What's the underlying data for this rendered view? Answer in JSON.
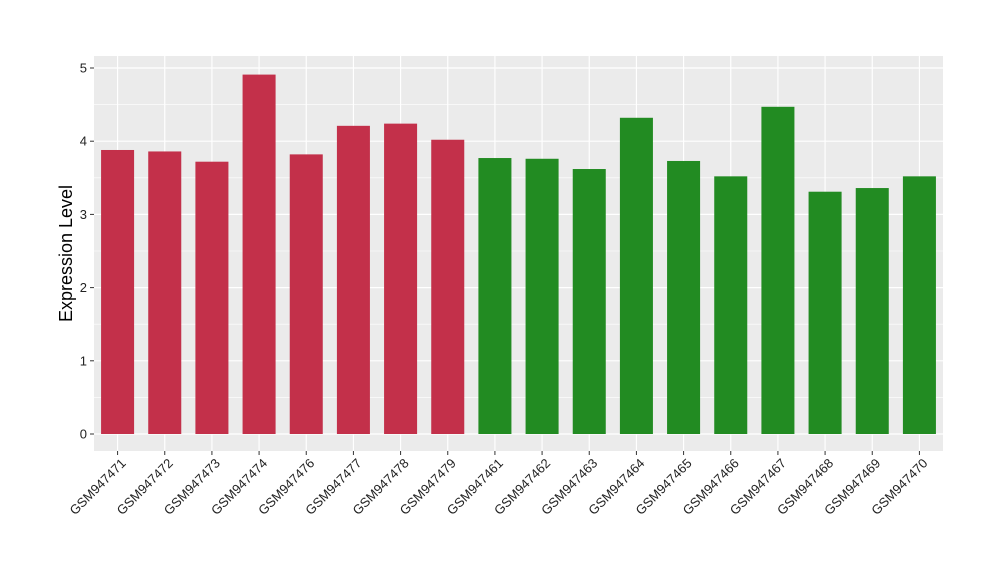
{
  "chart_data": {
    "type": "bar",
    "ylabel": "Expression Level",
    "xlabel": "",
    "ylim": [
      -0.25,
      5.15
    ],
    "yticks": [
      0,
      1,
      2,
      3,
      4,
      5
    ],
    "grid": true,
    "categories": [
      "GSM947471",
      "GSM947472",
      "GSM947473",
      "GSM947474",
      "GSM947476",
      "GSM947477",
      "GSM947478",
      "GSM947479",
      "GSM947461",
      "GSM947462",
      "GSM947463",
      "GSM947464",
      "GSM947465",
      "GSM947466",
      "GSM947467",
      "GSM947468",
      "GSM947469",
      "GSM947470"
    ],
    "values": [
      3.88,
      3.86,
      3.72,
      4.91,
      3.82,
      4.21,
      4.24,
      4.02,
      3.77,
      3.76,
      3.62,
      4.32,
      3.73,
      3.52,
      4.47,
      3.31,
      3.36,
      3.52
    ],
    "colors": [
      "#C3304A",
      "#C3304A",
      "#C3304A",
      "#C3304A",
      "#C3304A",
      "#C3304A",
      "#C3304A",
      "#C3304A",
      "#228B22",
      "#228B22",
      "#228B22",
      "#228B22",
      "#228B22",
      "#228B22",
      "#228B22",
      "#228B22",
      "#228B22",
      "#228B22"
    ],
    "panel_background": "#EBEBEB",
    "grid_color": "#FFFFFF"
  }
}
